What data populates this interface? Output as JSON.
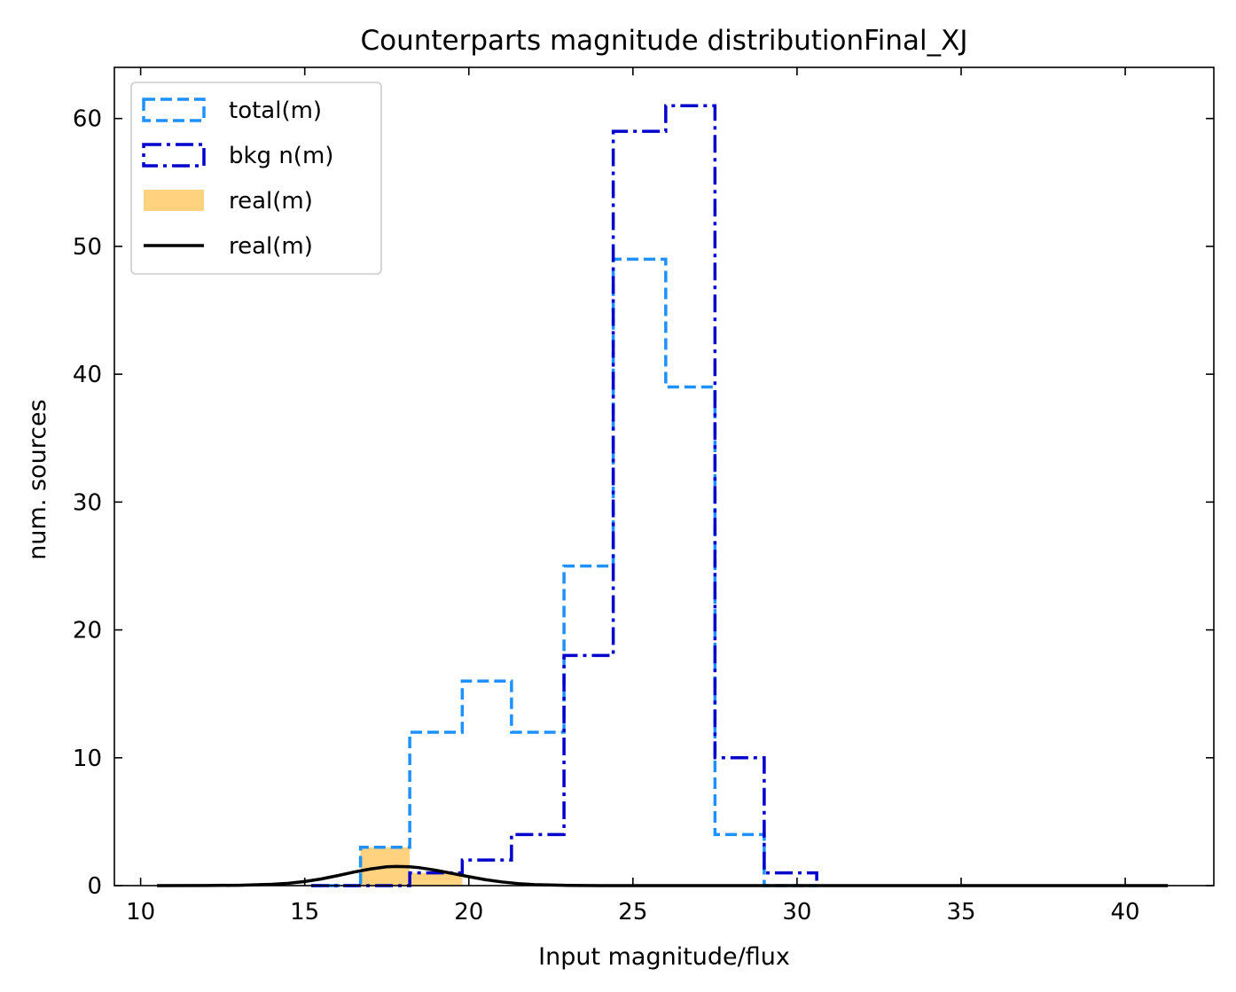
{
  "chart_data": {
    "type": "histogram",
    "title": "Counterparts magnitude distributionFinal_XJ",
    "xlabel": "Input magnitude/flux",
    "ylabel": "num. sources",
    "xlim": [
      9.2,
      42.7
    ],
    "ylim": [
      0,
      64
    ],
    "xticks": [
      10,
      15,
      20,
      25,
      30,
      35,
      40
    ],
    "yticks": [
      0,
      10,
      20,
      30,
      40,
      50,
      60
    ],
    "grid": false,
    "legend_position": "upper-left",
    "bin_edges": [
      15.2,
      16.7,
      18.2,
      19.8,
      21.3,
      22.9,
      24.4,
      26.0,
      27.5,
      29.0,
      30.6
    ],
    "series": [
      {
        "name": "total(m)",
        "style": "step-dashed",
        "color": "#1E90FF",
        "values": [
          0,
          3,
          12,
          16,
          12,
          25,
          49,
          39,
          4,
          0
        ]
      },
      {
        "name": "bkg n(m)",
        "style": "step-dashdot",
        "color": "#0000CD",
        "values": [
          0,
          0,
          1,
          2,
          4,
          18,
          59,
          61,
          10,
          1
        ]
      },
      {
        "name": "real(m)",
        "style": "filled-bars",
        "color": "#FFD27F",
        "values": [
          0,
          3,
          1,
          0,
          0,
          0,
          0,
          0,
          0,
          0
        ]
      },
      {
        "name": "real(m)",
        "style": "line",
        "color": "#000000",
        "curve": {
          "x": [
            10.5,
            12,
            13,
            14,
            14.5,
            15,
            15.5,
            16,
            16.5,
            17,
            17.5,
            17.8,
            18.2,
            18.5,
            19,
            19.5,
            20,
            20.5,
            21,
            21.5,
            22,
            23,
            24,
            26,
            30,
            35,
            41.3
          ],
          "y": [
            0,
            0.01,
            0.03,
            0.1,
            0.18,
            0.32,
            0.52,
            0.78,
            1.06,
            1.3,
            1.47,
            1.5,
            1.47,
            1.4,
            1.2,
            0.95,
            0.7,
            0.47,
            0.29,
            0.16,
            0.08,
            0.02,
            0,
            0,
            0,
            0,
            0
          ]
        }
      }
    ]
  }
}
